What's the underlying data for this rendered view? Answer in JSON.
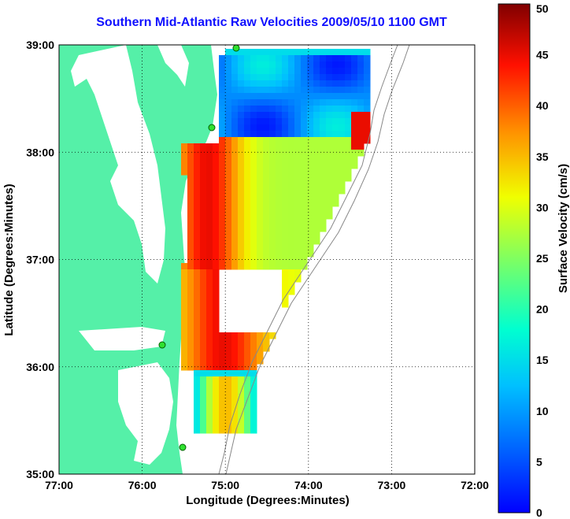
{
  "title": "Southern Mid-Atlantic Raw Velocities 2009/05/10 1100 GMT",
  "map": {
    "xlabel": "Longitude (Degrees:Minutes)",
    "ylabel": "Latitude (Degrees:Minutes)",
    "x_ticks": [
      "77:00",
      "76:00",
      "75:00",
      "74:00",
      "73:00",
      "72:00"
    ],
    "y_ticks": [
      "39:00",
      "38:00",
      "37:00",
      "36:00",
      "35:00"
    ],
    "lon_range": [
      -77,
      -72
    ],
    "lat_range": [
      35,
      39
    ],
    "land_color": "#55f0a8",
    "grid": "dotted"
  },
  "colorbar": {
    "label": "Surface Velocity (cm/s)",
    "ticks": [
      "50",
      "45",
      "40",
      "35",
      "30",
      "25",
      "20",
      "15",
      "10",
      "5",
      "0"
    ],
    "range": [
      0,
      50
    ],
    "colormap": "jet"
  }
}
